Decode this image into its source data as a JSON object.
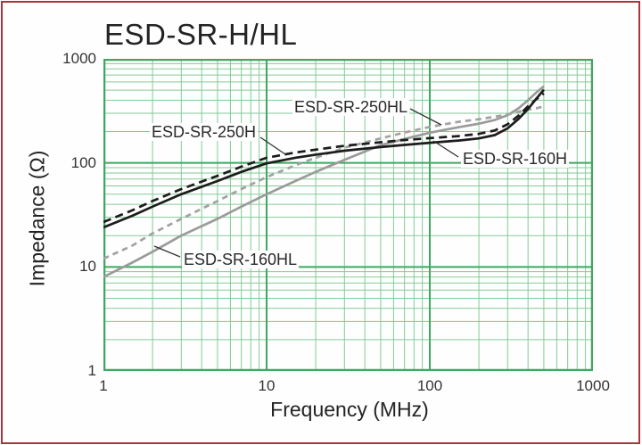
{
  "title": "ESD-SR-H/HL",
  "axes": {
    "x_label": "Frequency (MHz)",
    "y_label": "Impedance (Ω)",
    "x_ticks": [
      "1",
      "10",
      "100",
      "1000"
    ],
    "y_ticks": [
      "1000",
      "100",
      "10",
      "1"
    ]
  },
  "series_labels": {
    "esd_sr_250hl": "ESD-SR-250HL",
    "esd_sr_250h": "ESD-SR-250H",
    "esd_sr_160h": "ESD-SR-160H",
    "esd_sr_160hl": "ESD-SR-160HL"
  },
  "colors": {
    "page_border": "#a6373d",
    "grid_major": "#3fa860",
    "grid_minor": "#82cb98",
    "curve_black": "#1c1c1c",
    "curve_gray": "#9b9b9b",
    "leader_line": "#333333"
  },
  "chart_data": {
    "type": "line",
    "title": "ESD-SR-H/HL",
    "xlabel": "Frequency (MHz)",
    "ylabel": "Impedance (Ω)",
    "x_scale": "log",
    "y_scale": "log",
    "xlim": [
      1,
      1000
    ],
    "ylim": [
      1,
      1000
    ],
    "grid": "green log grid, major decades + minor 2-9 lines, both axes",
    "legend": "inline labels with pointer lines",
    "x": [
      1,
      1.5,
      2,
      3,
      5,
      7,
      10,
      15,
      20,
      30,
      50,
      70,
      100,
      150,
      200,
      250,
      300,
      350,
      400,
      450,
      500
    ],
    "series": [
      {
        "name": "ESD-SR-250H",
        "line": "dashed",
        "color": "#1c1c1c",
        "dash": [
          9,
          5.5
        ],
        "values": [
          27,
          35,
          43,
          56,
          75,
          92,
          112,
          126,
          134,
          146,
          158,
          166,
          173,
          181,
          190,
          205,
          235,
          285,
          350,
          410,
          465
        ]
      },
      {
        "name": "ESD-SR-160H",
        "line": "solid",
        "color": "#1c1c1c",
        "dash": null,
        "values": [
          24,
          31,
          38,
          50,
          67,
          82,
          99,
          112,
          120,
          131,
          142,
          149,
          156,
          164,
          172,
          185,
          215,
          265,
          330,
          415,
          505
        ]
      },
      {
        "name": "ESD-SR-250HL",
        "line": "dashed",
        "color": "#a2a2a2",
        "dash": [
          6.5,
          5
        ],
        "values": [
          12,
          16,
          21,
          29,
          43,
          56,
          73,
          95,
          112,
          140,
          172,
          196,
          222,
          248,
          263,
          278,
          292,
          310,
          325,
          335,
          350
        ]
      },
      {
        "name": "ESD-SR-160HL",
        "line": "solid",
        "color": "#9b9b9b",
        "dash": null,
        "values": [
          8,
          11,
          14,
          20,
          29,
          38,
          50,
          67,
          82,
          107,
          148,
          170,
          195,
          220,
          238,
          258,
          288,
          335,
          400,
          475,
          545
        ]
      }
    ]
  }
}
